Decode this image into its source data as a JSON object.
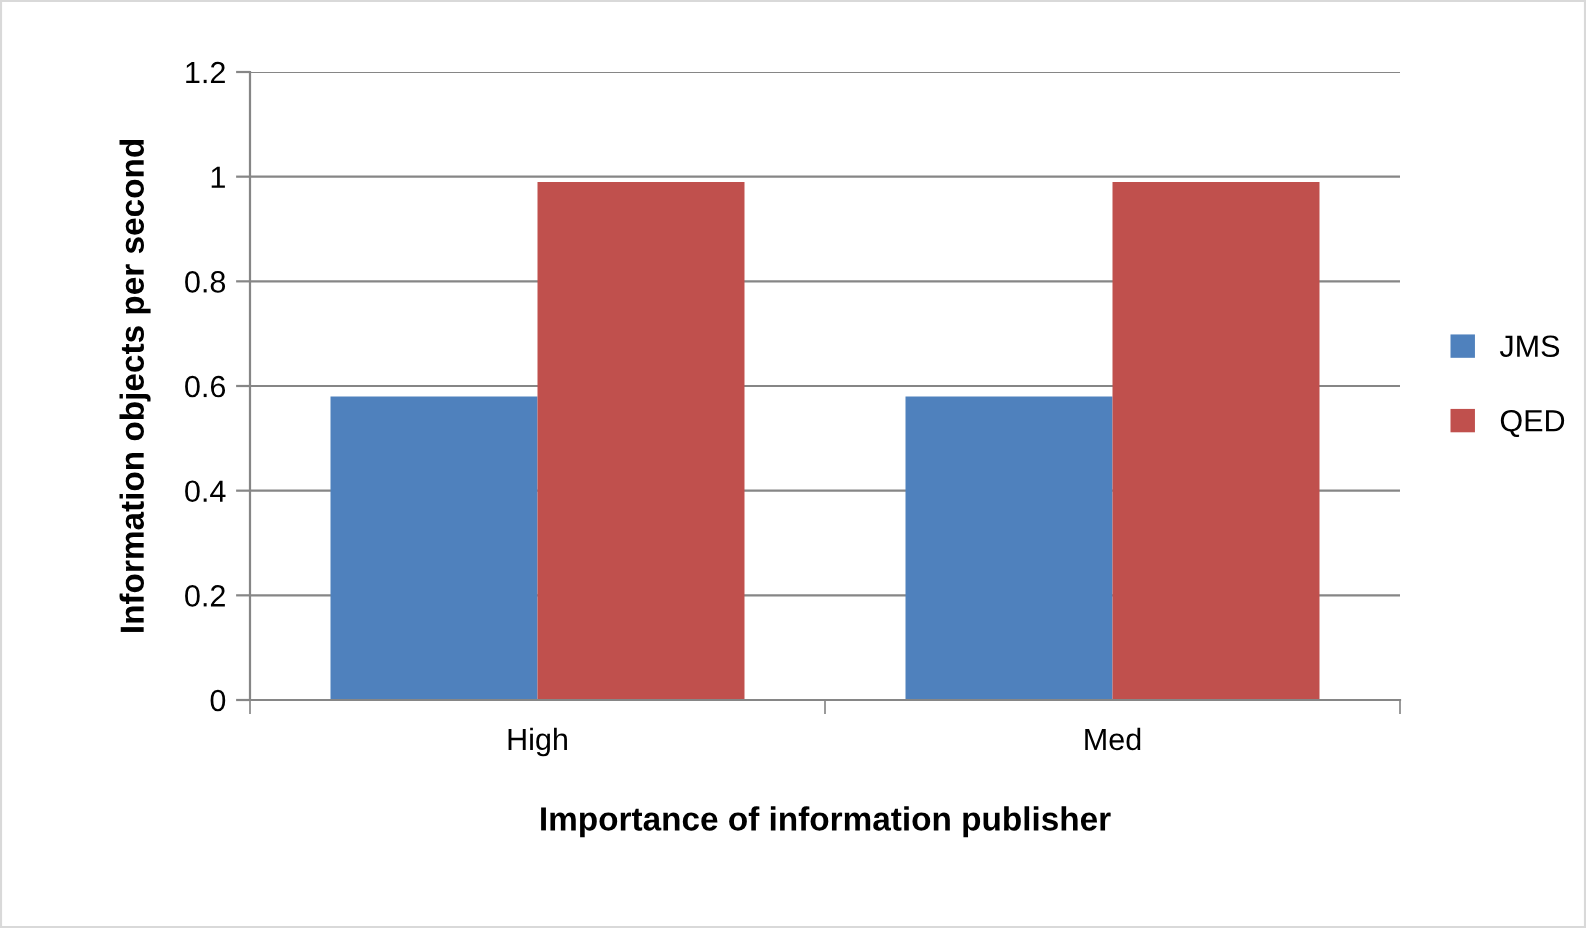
{
  "chart_data": {
    "type": "bar",
    "xlabel": "Importance of information publisher",
    "ylabel": "Information objects per second",
    "categories": [
      "High",
      "Med"
    ],
    "series": [
      {
        "name": "JMS",
        "color": "#4f81bd",
        "values": [
          0.58,
          0.58
        ]
      },
      {
        "name": "QED",
        "color": "#c0504d",
        "values": [
          0.99,
          0.99
        ]
      }
    ],
    "ylim": [
      0,
      1.2
    ],
    "yticks": [
      0,
      0.2,
      0.4,
      0.6,
      0.8,
      1,
      1.2
    ],
    "grid": "y",
    "legend": "right"
  }
}
